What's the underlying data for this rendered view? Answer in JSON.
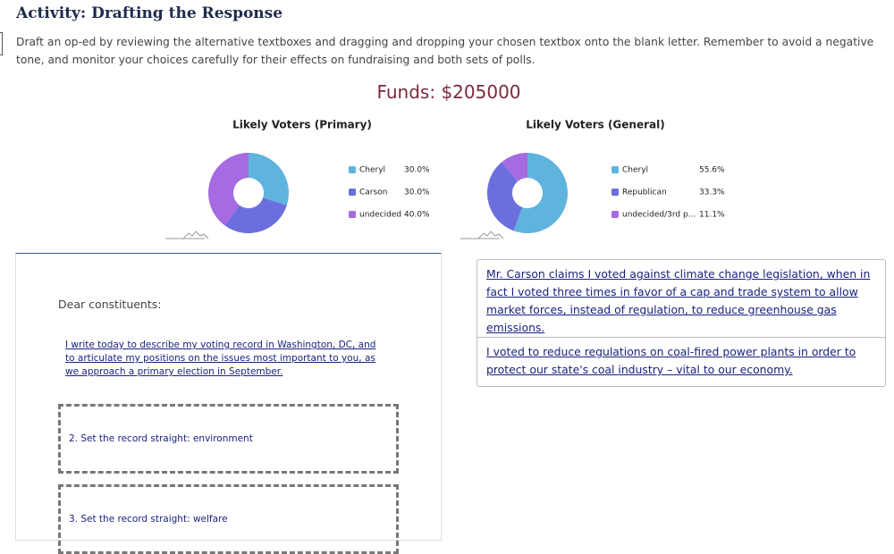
{
  "activity": {
    "title": "Activity: Drafting the Response",
    "instructions": "Draft an op-ed by reviewing the alternative textboxes and dragging and dropping your chosen textbox onto the blank letter. Remember to avoid a negative tone, and monitor your choices carefully for their effects on fundraising and both sets of polls.",
    "funds": "Funds: $205000"
  },
  "chart_data": [
    {
      "type": "pie",
      "title": "Likely Voters (Primary)",
      "categories": [
        "Cheryl",
        "Carson",
        "undecided"
      ],
      "values": [
        30,
        30,
        40
      ],
      "value_labels": [
        "30.0%",
        "30.0%",
        "40.0%"
      ],
      "colors": [
        "#5fb4de",
        "#6b6fdd",
        "#a66be0"
      ]
    },
    {
      "type": "pie",
      "title": "Likely Voters (General)",
      "categories": [
        "Cheryl",
        "Republican",
        "undecided/3rd p..."
      ],
      "values": [
        55.6,
        33.3,
        11.1
      ],
      "value_labels": [
        "55.6%",
        "33.3%",
        "11.1%"
      ],
      "colors": [
        "#5fb4de",
        "#6b6fdd",
        "#a66be0"
      ]
    }
  ],
  "letter": {
    "greeting": "Dear constituents:",
    "intro": "I write today to describe my voting record in Washington, DC, and to articulate my positions on the issues most important to you, as we approach a primary election in September.",
    "slots": [
      "2. Set the record straight: environment",
      "3. Set the record straight: welfare"
    ]
  },
  "options": [
    "Mr. Carson claims I voted against climate change legislation, when in fact I voted three times in favor of a cap and trade system to allow market forces, instead of regulation, to reduce greenhouse gas emissions.",
    "I voted to reduce regulations on coal-fired power plants in order to protect our state's coal industry – vital to our economy."
  ]
}
